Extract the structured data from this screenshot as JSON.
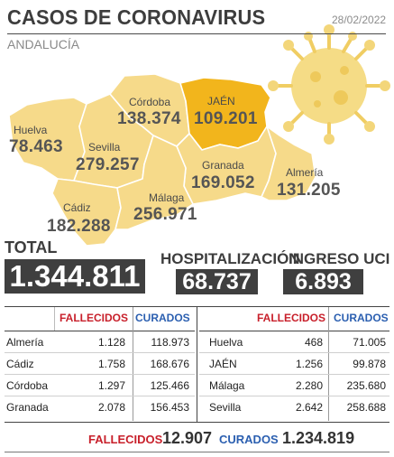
{
  "header": {
    "title": "CASOS DE CORONAVIRUS",
    "date": "28/02/2022",
    "region": "ANDALUCÍA"
  },
  "colors": {
    "map_fill": "#f6da8a",
    "highlight_fill": "#f2b51c",
    "border": "#ffffff",
    "dark_box": "#3f3f3f",
    "fallecidos": "#c8202b",
    "curados": "#2b5fb0"
  },
  "chart_data": {
    "type": "table",
    "title": "CASOS DE CORONAVIRUS",
    "highlighted": "JAÉN",
    "provinces": [
      {
        "name": "Huelva",
        "cases": "78.463"
      },
      {
        "name": "Sevilla",
        "cases": "279.257"
      },
      {
        "name": "Córdoba",
        "cases": "138.374"
      },
      {
        "name": "JAÉN",
        "cases": "109.201"
      },
      {
        "name": "Granada",
        "cases": "169.052"
      },
      {
        "name": "Almería",
        "cases": "131.205"
      },
      {
        "name": "Cádiz",
        "cases": "182.288"
      },
      {
        "name": "Málaga",
        "cases": "256.971"
      }
    ]
  },
  "totals": {
    "total_label": "TOTAL",
    "total_value": "1.344.811",
    "hosp_label": "HOSPITALIZACIÓN",
    "hosp_value": "68.737",
    "uci_label": "INGRESO UCI",
    "uci_value": "6.893"
  },
  "table": {
    "fallecidos_header": "FALLECIDOS",
    "curados_header": "CURADOS",
    "left_rows": [
      {
        "name": "Almería",
        "fallecidos": "1.128",
        "curados": "118.973"
      },
      {
        "name": "Cádiz",
        "fallecidos": "1.758",
        "curados": "168.676"
      },
      {
        "name": "Córdoba",
        "fallecidos": "1.297",
        "curados": "125.466"
      },
      {
        "name": "Granada",
        "fallecidos": "2.078",
        "curados": "156.453"
      }
    ],
    "right_rows": [
      {
        "name": "Huelva",
        "fallecidos": "468",
        "curados": "71.005"
      },
      {
        "name": "JAÉN",
        "fallecidos": "1.256",
        "curados": "99.878"
      },
      {
        "name": "Málaga",
        "fallecidos": "2.280",
        "curados": "235.680"
      },
      {
        "name": "Sevilla",
        "fallecidos": "2.642",
        "curados": "258.688"
      }
    ]
  },
  "footer": {
    "fallecidos_label": "FALLECIDOS",
    "fallecidos_total": "12.907",
    "curados_label": "CURADOS",
    "curados_total": "1.234.819"
  }
}
